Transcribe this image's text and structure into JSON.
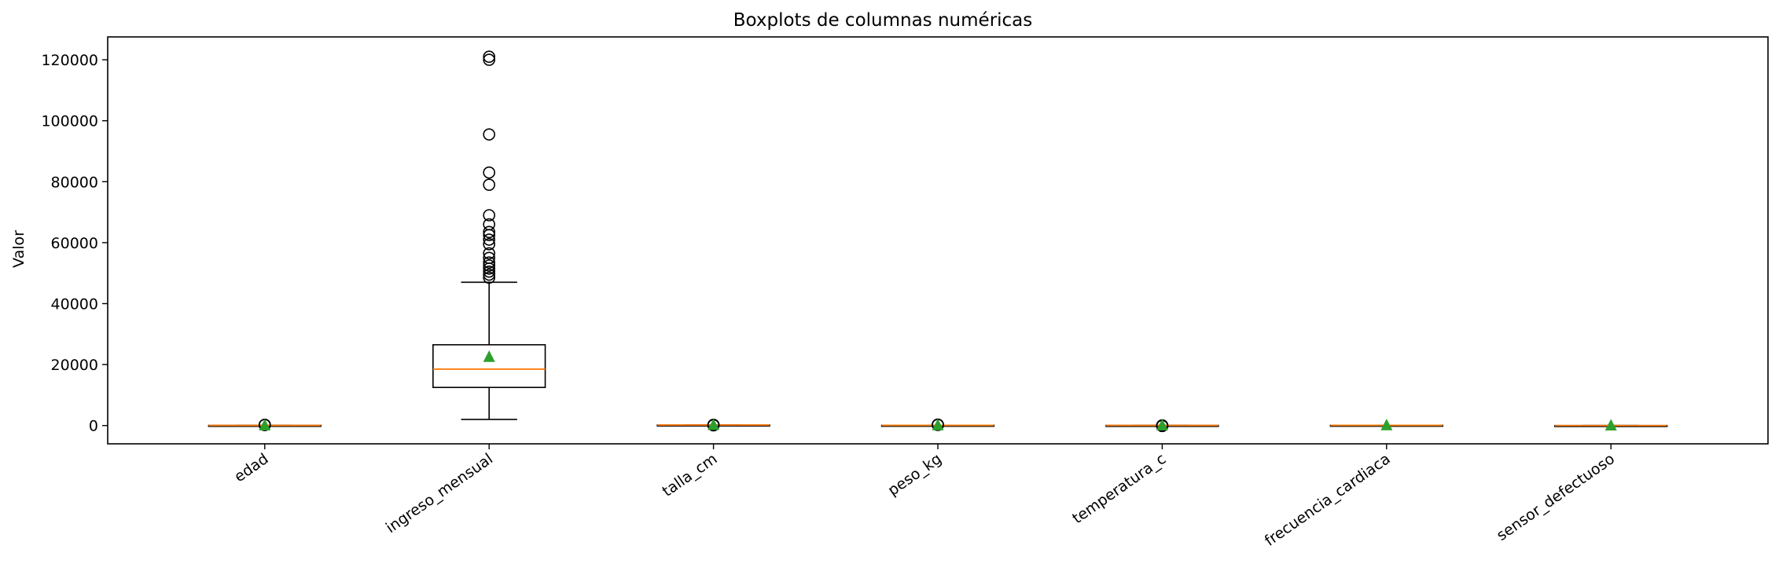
{
  "chart_data": {
    "type": "boxplot",
    "title": "Boxplots de columnas numéricas",
    "xlabel": "",
    "ylabel": "Valor",
    "ylim": [
      -6000,
      127500
    ],
    "yticks": [
      0,
      20000,
      40000,
      60000,
      80000,
      100000,
      120000
    ],
    "ytick_labels": [
      "0",
      "20000",
      "40000",
      "60000",
      "80000",
      "100000",
      "120000"
    ],
    "grid": false,
    "legend": "none",
    "colors": {
      "box": "#000000",
      "median": "#ff7f0e",
      "mean": "#2ca02c",
      "flier": "#000000"
    },
    "series": [
      {
        "name": "edad",
        "q1": 30,
        "median": 41,
        "q3": 53,
        "whisker_low": 18,
        "whisker_high": 85,
        "mean": 43,
        "fliers": [
          150,
          200,
          250
        ]
      },
      {
        "name": "ingreso_mensual",
        "q1": 12500,
        "median": 18500,
        "q3": 26500,
        "whisker_low": 2000,
        "whisker_high": 47000,
        "mean": 22500,
        "fliers": [
          48500,
          49500,
          50500,
          51500,
          52500,
          53500,
          55000,
          56500,
          59500,
          61000,
          62500,
          63500,
          66000,
          69000,
          79000,
          83000,
          95500,
          120000,
          121000
        ]
      },
      {
        "name": "talla_cm",
        "q1": 160,
        "median": 168,
        "q3": 176,
        "whisker_low": 145,
        "whisker_high": 195,
        "mean": 168,
        "fliers": [
          60,
          230
        ]
      },
      {
        "name": "peso_kg",
        "q1": 60,
        "median": 70,
        "q3": 80,
        "whisker_low": 40,
        "whisker_high": 110,
        "mean": 70,
        "fliers": [
          200,
          250,
          300
        ]
      },
      {
        "name": "temperatura_c",
        "q1": 36.3,
        "median": 36.6,
        "q3": 36.9,
        "whisker_low": 35.5,
        "whisker_high": 37.8,
        "mean": 36.6,
        "fliers": [
          -150,
          -100,
          42
        ]
      },
      {
        "name": "frecuencia_cardiaca",
        "q1": 65,
        "median": 75,
        "q3": 85,
        "whisker_low": 40,
        "whisker_high": 115,
        "mean": 76,
        "fliers": []
      },
      {
        "name": "sensor_defectuoso",
        "q1": -5,
        "median": -2,
        "q3": 1,
        "whisker_low": -10,
        "whisker_high": 6,
        "mean": -2,
        "fliers": []
      }
    ]
  }
}
